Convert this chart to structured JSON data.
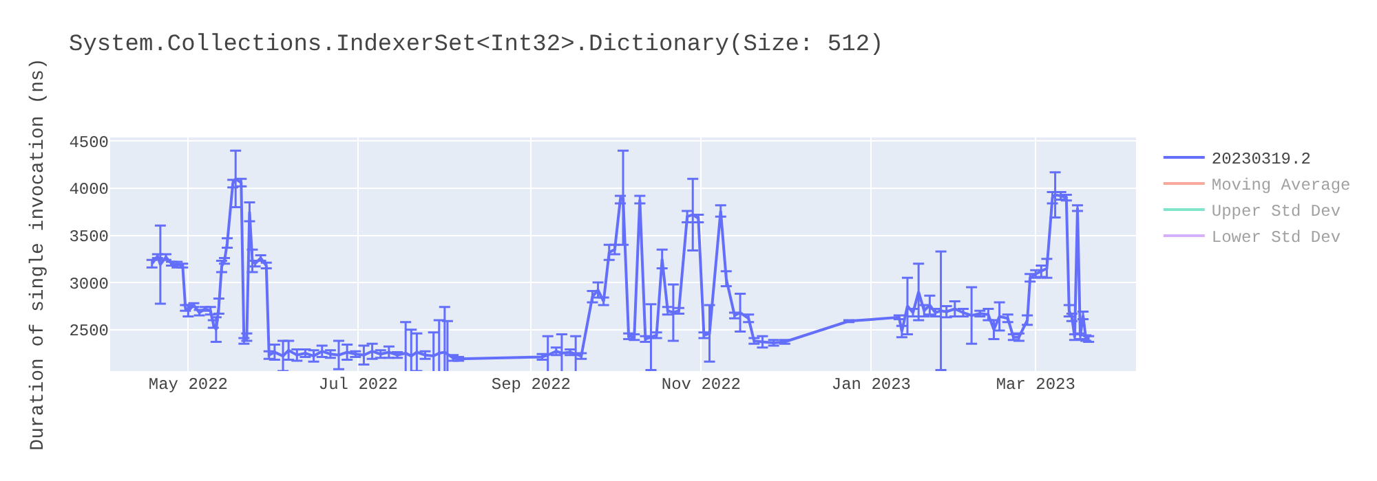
{
  "chart_data": {
    "type": "line",
    "title": "System.Collections.IndexerSet<Int32>.Dictionary(Size: 512)",
    "ylabel": "Duration of single invocation (ns)",
    "xlim": [
      "2022-04-03",
      "2023-04-06"
    ],
    "xticks": [
      {
        "value": "2022-05-01",
        "label": "May 2022"
      },
      {
        "value": "2022-07-01",
        "label": "Jul 2022"
      },
      {
        "value": "2022-09-01",
        "label": "Sep 2022"
      },
      {
        "value": "2022-11-01",
        "label": "Nov 2022"
      },
      {
        "value": "2023-01-01",
        "label": "Jan 2023"
      },
      {
        "value": "2023-03-01",
        "label": "Mar 2023"
      }
    ],
    "ylim": [
      2060,
      4540
    ],
    "yticks": [
      2500,
      3000,
      3500,
      4000,
      4500
    ],
    "grid": true,
    "legend": "top right",
    "marker": "none",
    "line_style": "solid",
    "series": [
      {
        "name": "20230319.2",
        "color": "#636efa",
        "x": [
          "2022-04-18",
          "2022-04-20",
          "2022-04-21",
          "2022-04-23",
          "2022-04-25",
          "2022-04-27",
          "2022-04-29",
          "2022-04-30",
          "2022-05-01",
          "2022-05-03",
          "2022-05-05",
          "2022-05-07",
          "2022-05-09",
          "2022-05-10",
          "2022-05-11",
          "2022-05-12",
          "2022-05-13",
          "2022-05-14",
          "2022-05-15",
          "2022-05-17",
          "2022-05-18",
          "2022-05-20",
          "2022-05-21",
          "2022-05-22",
          "2022-05-23",
          "2022-05-24",
          "2022-05-25",
          "2022-05-27",
          "2022-05-29",
          "2022-05-30",
          "2022-06-01",
          "2022-06-04",
          "2022-06-06",
          "2022-06-09",
          "2022-06-12",
          "2022-06-15",
          "2022-06-18",
          "2022-06-21",
          "2022-06-24",
          "2022-06-27",
          "2022-06-30",
          "2022-07-03",
          "2022-07-06",
          "2022-07-09",
          "2022-07-12",
          "2022-07-15",
          "2022-07-18",
          "2022-07-20",
          "2022-07-22",
          "2022-07-25",
          "2022-07-28",
          "2022-07-30",
          "2022-08-01",
          "2022-08-02",
          "2022-08-04",
          "2022-08-06",
          "2022-09-05",
          "2022-09-07",
          "2022-09-10",
          "2022-09-12",
          "2022-09-15",
          "2022-09-17",
          "2022-09-19",
          "2022-09-23",
          "2022-09-25",
          "2022-09-27",
          "2022-09-29",
          "2022-10-01",
          "2022-10-03",
          "2022-10-04",
          "2022-10-06",
          "2022-10-08",
          "2022-10-10",
          "2022-10-12",
          "2022-10-14",
          "2022-10-16",
          "2022-10-18",
          "2022-10-20",
          "2022-10-22",
          "2022-10-24",
          "2022-10-27",
          "2022-10-29",
          "2022-10-31",
          "2022-11-02",
          "2022-11-04",
          "2022-11-08",
          "2022-11-10",
          "2022-11-13",
          "2022-11-15",
          "2022-11-18",
          "2022-11-20",
          "2022-11-23",
          "2022-11-27",
          "2022-12-01",
          "2022-12-24",
          "2023-01-11",
          "2023-01-12",
          "2023-01-14",
          "2023-01-16",
          "2023-01-18",
          "2023-01-20",
          "2023-01-22",
          "2023-01-24",
          "2023-01-26",
          "2023-01-28",
          "2023-01-31",
          "2023-02-03",
          "2023-02-06",
          "2023-02-09",
          "2023-02-12",
          "2023-02-14",
          "2023-02-16",
          "2023-02-19",
          "2023-02-21",
          "2023-02-23",
          "2023-02-26",
          "2023-02-27",
          "2023-03-01",
          "2023-03-03",
          "2023-03-05",
          "2023-03-07",
          "2023-03-08",
          "2023-03-10",
          "2023-03-12",
          "2023-03-13",
          "2023-03-14",
          "2023-03-15",
          "2023-03-16",
          "2023-03-17",
          "2023-03-18",
          "2023-03-19",
          "2023-03-20"
        ],
        "values": [
          3200,
          3280,
          3190,
          3270,
          3200,
          3190,
          3180,
          2730,
          2700,
          2760,
          2680,
          2720,
          2700,
          2560,
          2500,
          2750,
          3170,
          3230,
          3420,
          4050,
          4100,
          4060,
          2380,
          2420,
          3750,
          3230,
          3200,
          3260,
          3180,
          2230,
          2260,
          2220,
          2280,
          2230,
          2250,
          2220,
          2270,
          2240,
          2230,
          2260,
          2240,
          2230,
          2270,
          2240,
          2260,
          2230,
          2250,
          2220,
          2260,
          2230,
          2220,
          2250,
          2260,
          2240,
          2200,
          2190,
          2210,
          2230,
          2270,
          2250,
          2260,
          2240,
          2220,
          2850,
          2920,
          2800,
          3320,
          3350,
          3880,
          3900,
          2430,
          2420,
          3880,
          2400,
          2420,
          2440,
          3250,
          2700,
          2680,
          2700,
          3700,
          3720,
          3680,
          2440,
          2460,
          3760,
          3040,
          2650,
          2680,
          2620,
          2380,
          2370,
          2360,
          2370,
          2590,
          2630,
          2480,
          2750,
          2680,
          2900,
          2700,
          2760,
          2680,
          2700,
          2690,
          2720,
          2680,
          2650,
          2670,
          2660,
          2500,
          2640,
          2620,
          2420,
          2420,
          2600,
          3050,
          3090,
          3120,
          3150,
          3900,
          3930,
          3920,
          3900,
          2700,
          2630,
          2420,
          3790,
          2430,
          2650,
          2410,
          2400
        ],
        "errors": [
          40,
          20,
          415,
          30,
          20,
          30,
          20,
          30,
          60,
          20,
          30,
          20,
          40,
          40,
          130,
          80,
          60,
          30,
          50,
          40,
          300,
          40,
          30,
          40,
          100,
          120,
          30,
          30,
          30,
          40,
          80,
          160,
          100,
          60,
          40,
          60,
          60,
          40,
          150,
          80,
          30,
          100,
          80,
          40,
          60,
          30,
          330,
          280,
          200,
          40,
          250,
          350,
          480,
          350,
          30,
          20,
          30,
          200,
          40,
          200,
          30,
          190,
          30,
          60,
          80,
          40,
          80,
          50,
          40,
          500,
          30,
          30,
          40,
          30,
          350,
          30,
          100,
          40,
          300,
          30,
          60,
          380,
          40,
          30,
          300,
          60,
          80,
          30,
          200,
          40,
          30,
          60,
          30,
          20,
          10,
          20,
          60,
          300,
          40,
          300,
          60,
          100,
          40,
          630,
          60,
          80,
          40,
          300,
          30,
          60,
          100,
          150,
          40,
          30,
          40,
          50,
          40,
          40,
          60,
          100,
          60,
          240,
          40,
          30,
          60,
          40,
          30,
          30,
          30,
          40,
          30,
          30
        ]
      },
      {
        "name": "Moving Average",
        "color": "#ef553b"
      },
      {
        "name": "Upper Std Dev",
        "color": "#00cc96"
      },
      {
        "name": "Lower Std Dev",
        "color": "#ab63fa"
      }
    ]
  }
}
